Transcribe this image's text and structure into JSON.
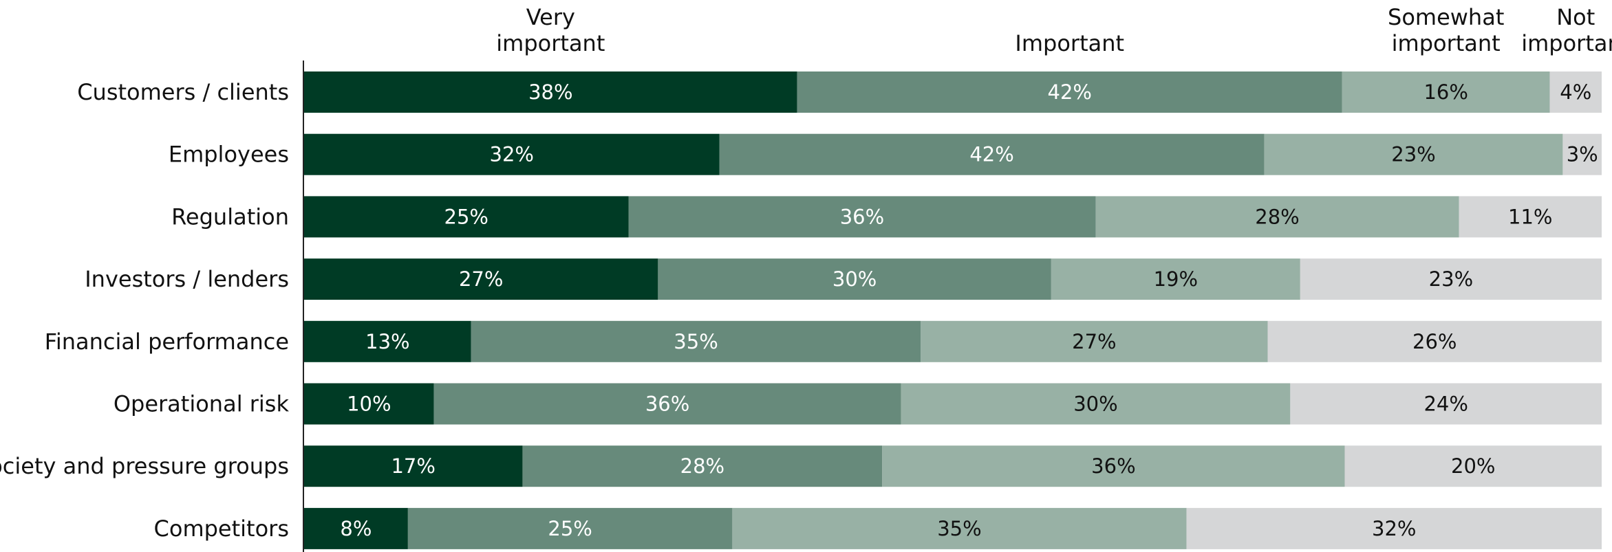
{
  "chart_data": {
    "type": "bar",
    "orientation": "horizontal",
    "stacked": true,
    "normalized_percent": true,
    "title": "",
    "xlabel": "",
    "ylabel": "",
    "xlim": [
      0,
      100
    ],
    "grid": false,
    "legend_position": "top",
    "categories": [
      "Customers / clients",
      "Employees",
      "Regulation",
      "Investors / lenders",
      "Financial performance",
      "Operational risk",
      "Society and pressure groups",
      "Competitors"
    ],
    "series": [
      {
        "name": "Very important",
        "legend_lines": [
          "Very",
          "important"
        ],
        "color": "#003b25",
        "label_color": "#ffffff",
        "values": [
          38,
          32,
          25,
          27,
          13,
          10,
          17,
          8
        ],
        "labels": [
          "38%",
          "32%",
          "25%",
          "27%",
          "13%",
          "10%",
          "17%",
          "8%"
        ]
      },
      {
        "name": "Important",
        "legend_lines": [
          "Important"
        ],
        "color": "#678a7b",
        "label_color": "#ffffff",
        "values": [
          42,
          42,
          36,
          30,
          35,
          36,
          28,
          25
        ],
        "labels": [
          "42%",
          "42%",
          "36%",
          "30%",
          "35%",
          "36%",
          "28%",
          "25%"
        ]
      },
      {
        "name": "Somewhat important",
        "legend_lines": [
          "Somewhat",
          "important"
        ],
        "color": "#98b1a5",
        "label_color": "#111111",
        "values": [
          16,
          23,
          28,
          19,
          27,
          30,
          36,
          35
        ],
        "labels": [
          "16%",
          "23%",
          "28%",
          "19%",
          "27%",
          "30%",
          "36%",
          "35%"
        ]
      },
      {
        "name": "Not important",
        "legend_lines": [
          "Not",
          "important"
        ],
        "color": "#d5d6d7",
        "label_color": "#111111",
        "values": [
          4,
          3,
          11,
          23,
          26,
          24,
          20,
          32
        ],
        "labels": [
          "4%",
          "3%",
          "11%",
          "23%",
          "26%",
          "24%",
          "20%",
          "32%"
        ]
      }
    ]
  }
}
